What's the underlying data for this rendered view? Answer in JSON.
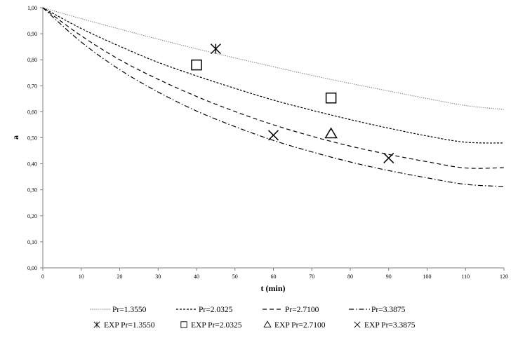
{
  "chart_data": {
    "type": "line",
    "xlabel": "t (min)",
    "ylabel": "a",
    "xlim": [
      0,
      120
    ],
    "ylim": [
      0,
      1
    ],
    "x_ticks": [
      "0",
      "10",
      "20",
      "30",
      "40",
      "50",
      "60",
      "70",
      "80",
      "90",
      "100",
      "110",
      "120"
    ],
    "y_ticks": [
      "0,00",
      "0,10",
      "0,20",
      "0,30",
      "0,40",
      "0,50",
      "0,60",
      "0,70",
      "0,80",
      "0,90",
      "1,00"
    ],
    "grid": false,
    "legend_position": "bottom",
    "x": [
      0,
      10,
      20,
      30,
      40,
      50,
      60,
      70,
      80,
      90,
      100,
      110,
      120
    ],
    "series": [
      {
        "name": "Pr=1.3550",
        "style": "dotted",
        "values": [
          1.0,
          0.958,
          0.918,
          0.879,
          0.842,
          0.807,
          0.773,
          0.74,
          0.709,
          0.68,
          0.651,
          0.624,
          0.609
        ]
      },
      {
        "name": "Pr=2.0325",
        "style": "short-dash",
        "values": [
          1.0,
          0.92,
          0.852,
          0.79,
          0.738,
          0.69,
          0.645,
          0.606,
          0.57,
          0.537,
          0.507,
          0.483,
          0.48
        ]
      },
      {
        "name": "Pr=2.7100",
        "style": "long-dash",
        "values": [
          1.0,
          0.892,
          0.8,
          0.725,
          0.659,
          0.601,
          0.55,
          0.506,
          0.468,
          0.436,
          0.408,
          0.384,
          0.385
        ]
      },
      {
        "name": "Pr=3.3875",
        "style": "dash-dot",
        "values": [
          1.0,
          0.868,
          0.762,
          0.676,
          0.603,
          0.543,
          0.49,
          0.446,
          0.407,
          0.374,
          0.346,
          0.321,
          0.313
        ]
      }
    ],
    "experimental": [
      {
        "name": "EXP Pr=1.3550",
        "marker": "asterisk",
        "points": [
          [
            45,
            0.842
          ]
        ]
      },
      {
        "name": "EXP Pr=2.0325",
        "marker": "square",
        "points": [
          [
            40,
            0.78
          ],
          [
            75,
            0.653
          ]
        ]
      },
      {
        "name": "EXP Pr=2.7100",
        "marker": "triangle",
        "points": [
          [
            75,
            0.515
          ]
        ]
      },
      {
        "name": "EXP Pr=3.3875",
        "marker": "cross",
        "points": [
          [
            60,
            0.51
          ],
          [
            90,
            0.422
          ]
        ]
      }
    ]
  }
}
